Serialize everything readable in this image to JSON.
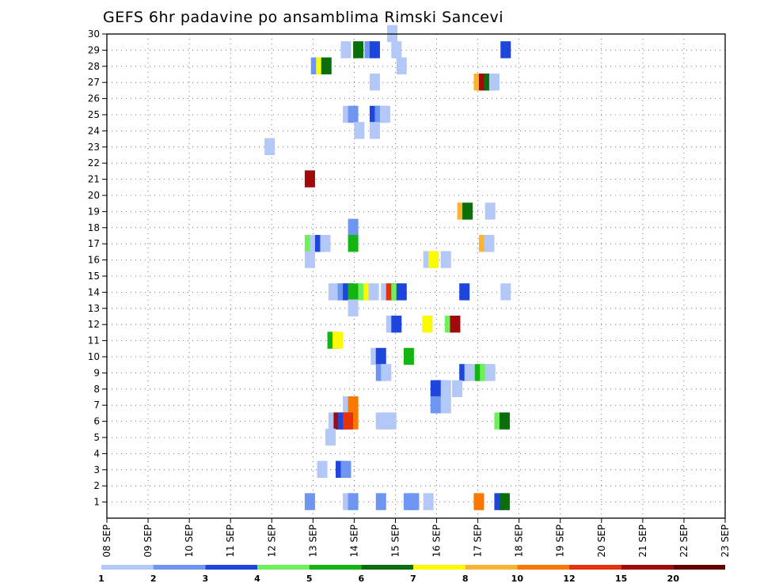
{
  "chart_data": {
    "type": "heatmap",
    "title": "GEFS 6hr padavine po ansamblima Rimski Sancevi",
    "y_ticks": [
      "1",
      "2",
      "3",
      "4",
      "5",
      "6",
      "7",
      "8",
      "9",
      "10",
      "11",
      "12",
      "13",
      "14",
      "15",
      "16",
      "17",
      "18",
      "19",
      "20",
      "21",
      "22",
      "23",
      "24",
      "25",
      "26",
      "27",
      "28",
      "29",
      "30"
    ],
    "ylim": [
      0,
      30
    ],
    "x_ticks": [
      "08 SEP",
      "09 SEP",
      "10 SEP",
      "11 SEP",
      "12 SEP",
      "13 SEP",
      "14 SEP",
      "15 SEP",
      "16 SEP",
      "17 SEP",
      "18 SEP",
      "19 SEP",
      "20 SEP",
      "21 SEP",
      "22 SEP",
      "23 SEP"
    ],
    "x_steps_per_day": 4,
    "grid": true,
    "legend": {
      "placement": "bottom",
      "colors": [
        "#b4c8f8",
        "#6e96f0",
        "#1e46dc",
        "#6ef05a",
        "#14b414",
        "#0a6e0a",
        "#fafa00",
        "#fab432",
        "#fa7800",
        "#e6320a",
        "#a00a0a",
        "#640000"
      ],
      "labels": [
        "1",
        "2",
        "3",
        "4",
        "5",
        "6",
        "7",
        "8",
        "10",
        "12",
        "15",
        "20"
      ]
    },
    "cells": [
      {
        "x": 27.2,
        "m": 30,
        "c": 1
      },
      {
        "x": 22.7,
        "m": 29,
        "c": 1
      },
      {
        "x": 23.9,
        "m": 29,
        "c": 6
      },
      {
        "x": 25.0,
        "m": 29,
        "c": 2
      },
      {
        "x": 25.5,
        "m": 29,
        "c": 3
      },
      {
        "x": 27.6,
        "m": 29,
        "c": 1
      },
      {
        "x": 38.2,
        "m": 29,
        "c": 3
      },
      {
        "x": 19.8,
        "m": 28,
        "c": 2
      },
      {
        "x": 20.3,
        "m": 28,
        "c": 7
      },
      {
        "x": 20.8,
        "m": 28,
        "c": 6
      },
      {
        "x": 28.1,
        "m": 28,
        "c": 1
      },
      {
        "x": 25.5,
        "m": 27,
        "c": 1
      },
      {
        "x": 35.6,
        "m": 27,
        "c": 8
      },
      {
        "x": 36.1,
        "m": 27,
        "c": 11
      },
      {
        "x": 36.6,
        "m": 27,
        "c": 6
      },
      {
        "x": 37.1,
        "m": 27,
        "c": 1
      },
      {
        "x": 22.9,
        "m": 25,
        "c": 1
      },
      {
        "x": 23.4,
        "m": 25,
        "c": 2
      },
      {
        "x": 25.5,
        "m": 25,
        "c": 3
      },
      {
        "x": 26.0,
        "m": 25,
        "c": 2
      },
      {
        "x": 26.5,
        "m": 25,
        "c": 1
      },
      {
        "x": 24.0,
        "m": 24,
        "c": 1
      },
      {
        "x": 25.5,
        "m": 24,
        "c": 1
      },
      {
        "x": 15.3,
        "m": 23,
        "c": 1
      },
      {
        "x": 19.2,
        "m": 21,
        "c": 11
      },
      {
        "x": 36.7,
        "m": 19,
        "c": 1
      },
      {
        "x": 34.0,
        "m": 19,
        "c": 8
      },
      {
        "x": 34.5,
        "m": 19,
        "c": 6
      },
      {
        "x": 23.4,
        "m": 18,
        "c": 2
      },
      {
        "x": 19.2,
        "m": 17,
        "c": 4
      },
      {
        "x": 19.7,
        "m": 17,
        "c": 1
      },
      {
        "x": 20.2,
        "m": 17,
        "c": 3
      },
      {
        "x": 20.7,
        "m": 17,
        "c": 1
      },
      {
        "x": 23.4,
        "m": 17,
        "c": 5
      },
      {
        "x": 36.1,
        "m": 17,
        "c": 8
      },
      {
        "x": 36.6,
        "m": 17,
        "c": 1
      },
      {
        "x": 30.7,
        "m": 16,
        "c": 1
      },
      {
        "x": 31.2,
        "m": 16,
        "c": 7
      },
      {
        "x": 32.4,
        "m": 16,
        "c": 1
      },
      {
        "x": 19.2,
        "m": 16,
        "c": 1
      },
      {
        "x": 21.5,
        "m": 14,
        "c": 1
      },
      {
        "x": 22.0,
        "m": 14,
        "c": 1
      },
      {
        "x": 22.4,
        "m": 14,
        "c": 2
      },
      {
        "x": 22.9,
        "m": 14,
        "c": 3
      },
      {
        "x": 23.4,
        "m": 14,
        "c": 5
      },
      {
        "x": 24.4,
        "m": 14,
        "c": 4
      },
      {
        "x": 24.9,
        "m": 14,
        "c": 7
      },
      {
        "x": 25.4,
        "m": 14,
        "c": 1
      },
      {
        "x": 26.6,
        "m": 14,
        "c": 1
      },
      {
        "x": 27.1,
        "m": 14,
        "c": 10
      },
      {
        "x": 27.6,
        "m": 14,
        "c": 4
      },
      {
        "x": 28.1,
        "m": 14,
        "c": 3
      },
      {
        "x": 34.2,
        "m": 14,
        "c": 3
      },
      {
        "x": 38.2,
        "m": 14,
        "c": 1
      },
      {
        "x": 23.4,
        "m": 13,
        "c": 1
      },
      {
        "x": 27.1,
        "m": 12,
        "c": 1
      },
      {
        "x": 27.6,
        "m": 12,
        "c": 3
      },
      {
        "x": 30.6,
        "m": 12,
        "c": 7
      },
      {
        "x": 32.8,
        "m": 12,
        "c": 4
      },
      {
        "x": 33.3,
        "m": 12,
        "c": 11
      },
      {
        "x": 21.4,
        "m": 11,
        "c": 5
      },
      {
        "x": 21.9,
        "m": 11,
        "c": 7
      },
      {
        "x": 25.6,
        "m": 10,
        "c": 1
      },
      {
        "x": 26.1,
        "m": 10,
        "c": 3
      },
      {
        "x": 28.8,
        "m": 10,
        "c": 5
      },
      {
        "x": 26.1,
        "m": 9,
        "c": 2
      },
      {
        "x": 26.6,
        "m": 9,
        "c": 1
      },
      {
        "x": 34.2,
        "m": 9,
        "c": 3
      },
      {
        "x": 34.7,
        "m": 9,
        "c": 1
      },
      {
        "x": 35.7,
        "m": 9,
        "c": 5
      },
      {
        "x": 36.2,
        "m": 9,
        "c": 4
      },
      {
        "x": 36.7,
        "m": 9,
        "c": 1
      },
      {
        "x": 31.4,
        "m": 8,
        "c": 3
      },
      {
        "x": 31.9,
        "m": 8,
        "c": 3
      },
      {
        "x": 32.4,
        "m": 8,
        "c": 1
      },
      {
        "x": 33.5,
        "m": 8,
        "c": 1
      },
      {
        "x": 31.4,
        "m": 7,
        "c": 2
      },
      {
        "x": 31.9,
        "m": 7,
        "c": 2
      },
      {
        "x": 32.4,
        "m": 7,
        "c": 1
      },
      {
        "x": 22.9,
        "m": 7,
        "c": 1
      },
      {
        "x": 23.4,
        "m": 7,
        "c": 9
      },
      {
        "x": 22.9,
        "m": 6,
        "c": 1
      },
      {
        "x": 23.4,
        "m": 6,
        "c": 9
      },
      {
        "x": 21.5,
        "m": 6,
        "c": 1
      },
      {
        "x": 22.0,
        "m": 6,
        "c": 11
      },
      {
        "x": 22.4,
        "m": 6,
        "c": 3
      },
      {
        "x": 22.9,
        "m": 6,
        "c": 10
      },
      {
        "x": 26.1,
        "m": 6,
        "c": 1
      },
      {
        "x": 26.6,
        "m": 6,
        "c": 1
      },
      {
        "x": 27.1,
        "m": 6,
        "c": 1
      },
      {
        "x": 37.6,
        "m": 6,
        "c": 4
      },
      {
        "x": 38.1,
        "m": 6,
        "c": 6
      },
      {
        "x": 21.2,
        "m": 5,
        "c": 1
      },
      {
        "x": 20.4,
        "m": 3,
        "c": 1
      },
      {
        "x": 22.2,
        "m": 3,
        "c": 3
      },
      {
        "x": 22.7,
        "m": 3,
        "c": 2
      },
      {
        "x": 19.2,
        "m": 1,
        "c": 2
      },
      {
        "x": 22.9,
        "m": 1,
        "c": 1
      },
      {
        "x": 23.4,
        "m": 1,
        "c": 2
      },
      {
        "x": 26.1,
        "m": 1,
        "c": 2
      },
      {
        "x": 28.8,
        "m": 1,
        "c": 2
      },
      {
        "x": 29.3,
        "m": 1,
        "c": 2
      },
      {
        "x": 30.7,
        "m": 1,
        "c": 1
      },
      {
        "x": 35.6,
        "m": 1,
        "c": 9
      },
      {
        "x": 37.6,
        "m": 1,
        "c": 3
      },
      {
        "x": 38.1,
        "m": 1,
        "c": 6
      }
    ]
  }
}
